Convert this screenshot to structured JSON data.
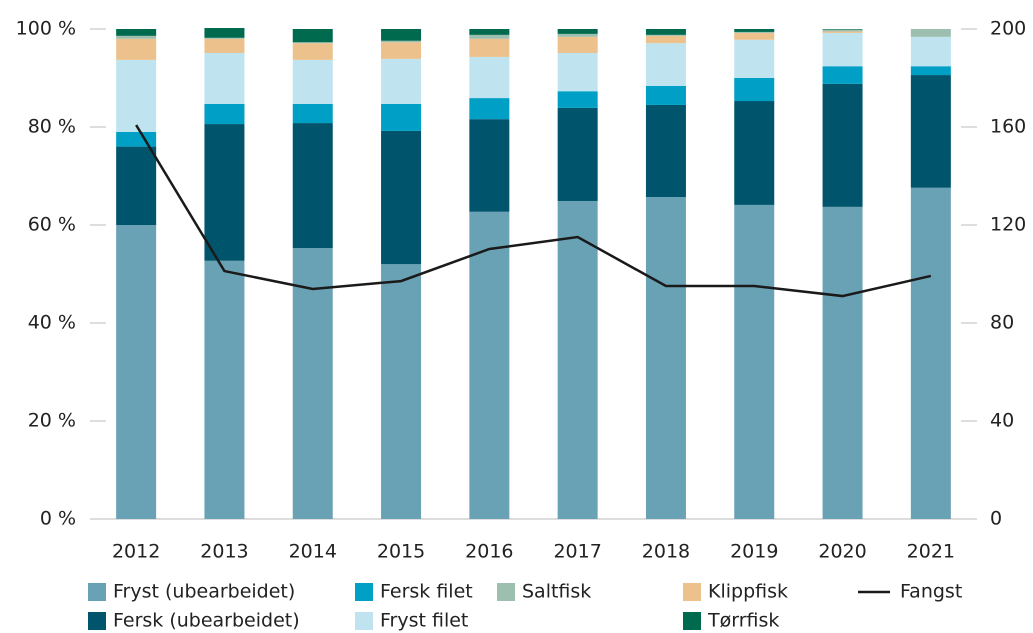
{
  "chart_data": {
    "type": "bar",
    "stacked": true,
    "categories": [
      "2012",
      "2013",
      "2014",
      "2015",
      "2016",
      "2017",
      "2018",
      "2019",
      "2020",
      "2021"
    ],
    "series": [
      {
        "name": "Fryst (ubearbeidet)",
        "color": "#6aa2b5",
        "values": [
          60,
          52.7,
          55.3,
          52,
          62.7,
          64.9,
          65.7,
          64.1,
          63.7,
          67.6
        ]
      },
      {
        "name": "Fersk (ubearbeidet)",
        "color": "#00546b",
        "values": [
          16,
          27.9,
          25.5,
          27.2,
          18.9,
          19,
          18.8,
          21.2,
          25.1,
          23
        ]
      },
      {
        "name": "Fersk filet",
        "color": "#00a0c6",
        "values": [
          3,
          4.1,
          3.9,
          5.5,
          4.3,
          3.4,
          3.9,
          4.7,
          3.6,
          1.8
        ]
      },
      {
        "name": "Fryst filet",
        "color": "#bfe4f0",
        "values": [
          14.7,
          10.4,
          9,
          9.2,
          8.4,
          7.8,
          8.7,
          7.8,
          6.8,
          6
        ]
      },
      {
        "name": "Klippfisk",
        "color": "#ecc18b",
        "values": [
          4.3,
          2.9,
          3.4,
          3.4,
          3.7,
          3.3,
          1.5,
          1.4,
          0.3,
          0
        ]
      },
      {
        "name": "Saltfisk",
        "color": "#9dbfb0",
        "values": [
          0.6,
          0.2,
          0.2,
          0.3,
          0.8,
          0.6,
          0.2,
          0.2,
          0.4,
          1.6
        ]
      },
      {
        "name": "Tørrfisk",
        "color": "#006a4e",
        "values": [
          1.4,
          2,
          2.7,
          2.4,
          1.2,
          1,
          1.2,
          0.6,
          0.1,
          0
        ]
      },
      {
        "name": "Fangst",
        "color": "#1a1a1a",
        "type": "line",
        "axis": "y2",
        "values": [
          160.8,
          101.2,
          93.9,
          97.1,
          110.2,
          115.1,
          95.1,
          95.1,
          91,
          99.2
        ]
      }
    ],
    "ylim": [
      0,
      100
    ],
    "yticks": [
      {
        "value": 0,
        "label": "0 %"
      },
      {
        "value": 20,
        "label": "20 %"
      },
      {
        "value": 40,
        "label": "40 %"
      },
      {
        "value": 60,
        "label": "60 %"
      },
      {
        "value": 80,
        "label": "80 %"
      },
      {
        "value": 100,
        "label": "100 %"
      }
    ],
    "y2lim": [
      0,
      200
    ],
    "y2ticks": [
      0,
      40,
      80,
      120,
      160,
      200
    ]
  }
}
